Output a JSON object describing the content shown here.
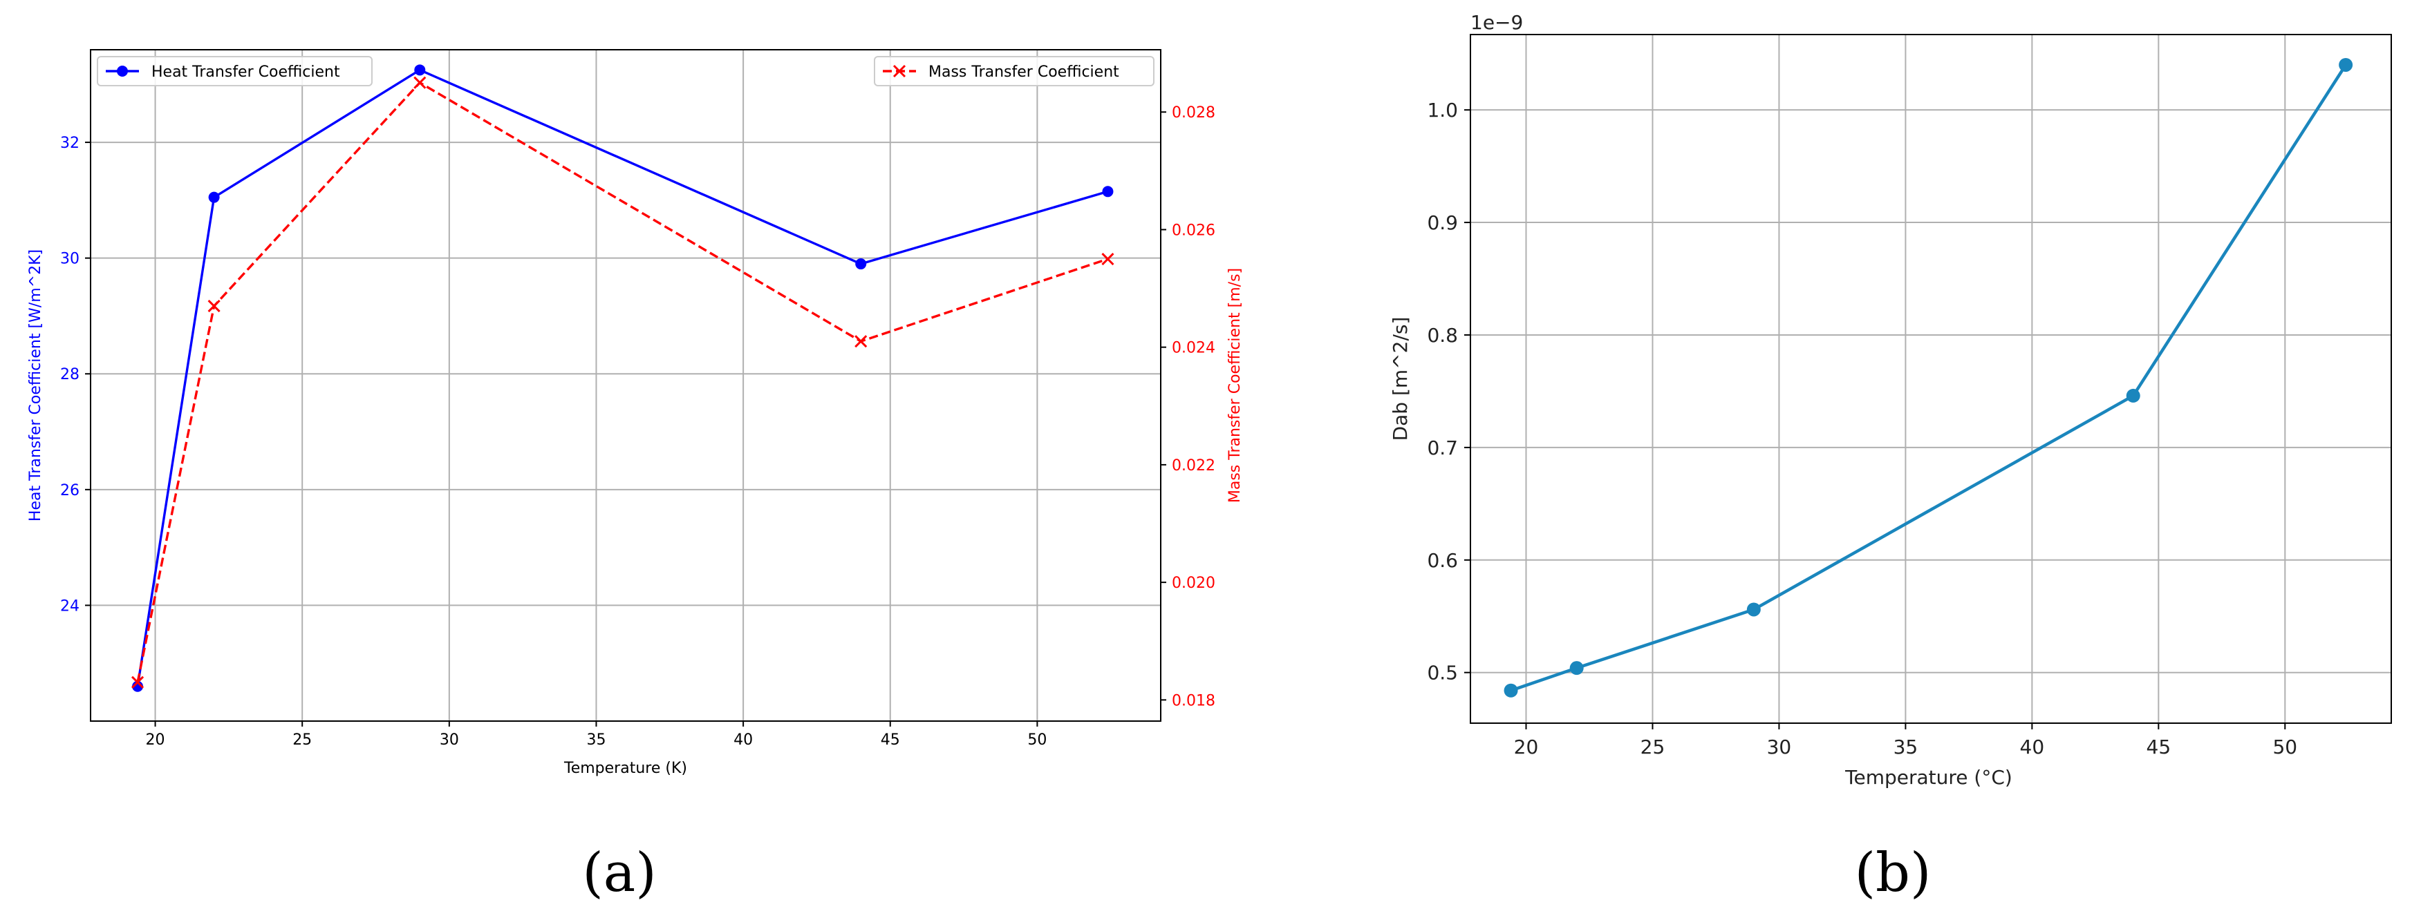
{
  "chart_data": [
    {
      "type": "line",
      "panel_label": "(a)",
      "xlabel": "Temperature (K)",
      "x": [
        19.4,
        22,
        29,
        44,
        52.4
      ],
      "xlim": [
        17.8,
        54.2
      ],
      "xticks": [
        20,
        25,
        30,
        35,
        40,
        45,
        50
      ],
      "grid": true,
      "axes": {
        "left": {
          "ylabel": "Heat Transfer Coefficient [W/m^2K]",
          "ylim": [
            22.0,
            33.6
          ],
          "yticks": [
            24,
            26,
            28,
            30,
            32
          ],
          "color": "#0000ff"
        },
        "right": {
          "ylabel": "Mass Transfer Coefficient [m/s]",
          "ylim": [
            0.01764,
            0.02906
          ],
          "yticks": [
            0.018,
            0.02,
            0.022,
            0.024,
            0.026,
            0.028
          ],
          "color": "#ff0000"
        }
      },
      "series": [
        {
          "name": "Heat Transfer Coefficient",
          "axis": "left",
          "values": [
            22.6,
            31.05,
            33.25,
            29.9,
            31.15
          ],
          "color": "#0000ff",
          "line_style": "solid",
          "marker": "circle",
          "legend": "top-left"
        },
        {
          "name": "Mass Transfer Coefficient",
          "axis": "right",
          "values": [
            0.0183,
            0.0247,
            0.0285,
            0.0241,
            0.0255
          ],
          "color": "#ff0000",
          "line_style": "dashed",
          "marker": "x",
          "legend": "top-right"
        }
      ]
    },
    {
      "type": "line",
      "panel_label": "(b)",
      "xlabel": "Temperature (°C)",
      "ylabel": "Dab [m^2/s]",
      "offset_label": "1e−9",
      "x": [
        19.4,
        22,
        29,
        44,
        52.4
      ],
      "xlim": [
        17.8,
        54.2
      ],
      "xticks": [
        20,
        25,
        30,
        35,
        40,
        45,
        50
      ],
      "ylim": [
        0.455,
        1.067
      ],
      "yticks": [
        0.5,
        0.6,
        0.7,
        0.8,
        0.9,
        1.0
      ],
      "ytick_labels": [
        "0.5",
        "0.6",
        "0.7",
        "0.8",
        "0.9",
        "1.0"
      ],
      "grid": true,
      "series": [
        {
          "values": [
            0.484,
            0.504,
            0.556,
            0.746,
            1.04
          ],
          "color": "#1a86bd",
          "line_style": "solid",
          "marker": "circle"
        }
      ]
    }
  ]
}
